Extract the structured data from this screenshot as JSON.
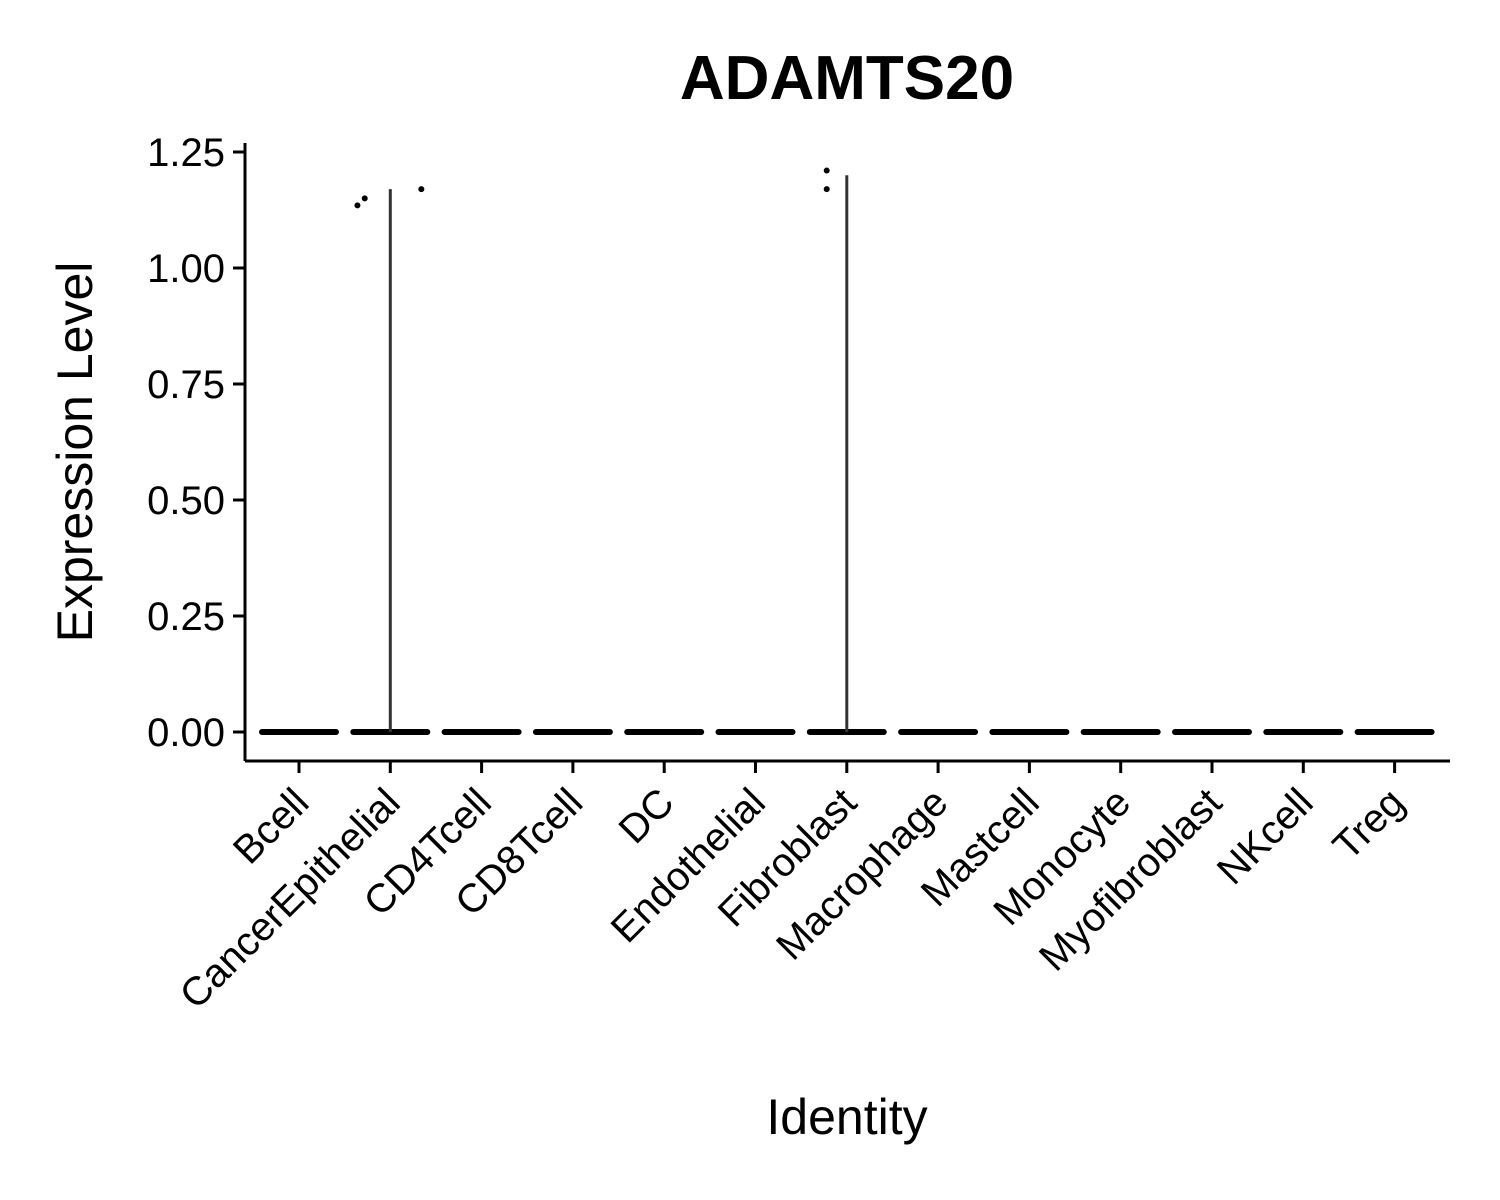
{
  "chart_data": {
    "type": "violin",
    "title": "ADAMTS20",
    "xlabel": "Identity",
    "ylabel": "Expression Level",
    "ylim": [
      -0.06,
      1.27
    ],
    "yticks": [
      "0.00",
      "0.25",
      "0.50",
      "0.75",
      "1.00",
      "1.25"
    ],
    "ytick_values": [
      0,
      0.25,
      0.5,
      0.75,
      1.0,
      1.25
    ],
    "categories": [
      "Bcell",
      "CancerEpithelial",
      "CD4Tcell",
      "CD8Tcell",
      "DC",
      "Endothelial",
      "Fibroblast",
      "Macrophage",
      "Mastcell",
      "Monocyte",
      "Myofibroblast",
      "NKcell",
      "Treg"
    ],
    "violin_max": [
      0,
      1.17,
      0,
      0,
      0,
      0,
      1.2,
      0,
      0,
      0,
      0,
      0,
      0
    ],
    "points": [
      {
        "category": "CancerEpithelial",
        "offset": -0.36,
        "y": 1.135
      },
      {
        "category": "CancerEpithelial",
        "offset": -0.28,
        "y": 1.15
      },
      {
        "category": "CancerEpithelial",
        "offset": 0.34,
        "y": 1.17
      },
      {
        "category": "Fibroblast",
        "offset": -0.22,
        "y": 1.21
      },
      {
        "category": "Fibroblast",
        "offset": -0.22,
        "y": 1.17
      }
    ],
    "grid": false,
    "legend": "none",
    "colors": {
      "violin": "#333333",
      "axis": "#000000",
      "point": "#000000"
    }
  }
}
